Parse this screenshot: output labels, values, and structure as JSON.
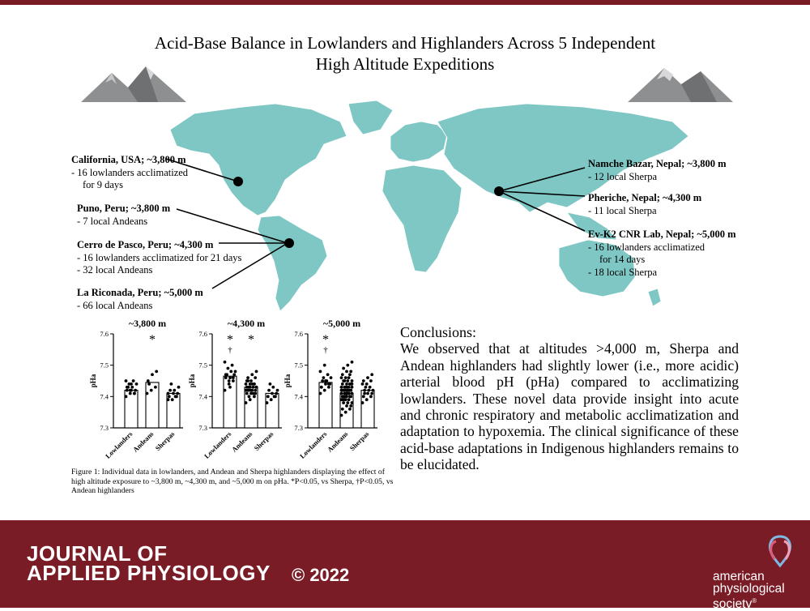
{
  "title": {
    "line1": "Acid-Base Balance in Lowlanders and Highlanders Across 5 Independent",
    "line2": "High Altitude Expeditions"
  },
  "map_labels": {
    "california": {
      "head": "California, USA; ~3,800 m",
      "lines": [
        "- 16 lowlanders acclimatized",
        "for 9 days"
      ]
    },
    "puno": {
      "head": "Puno, Peru; ~3,800 m",
      "lines": [
        "- 7 local Andeans"
      ]
    },
    "cerro": {
      "head": "Cerro de Pasco, Peru; ~4,300 m",
      "lines": [
        "- 16 lowlanders acclimatized for 21 days",
        "- 32 local Andeans"
      ]
    },
    "riconada": {
      "head": "La Riconada, Peru; ~5,000 m",
      "lines": [
        "- 66 local Andeans"
      ]
    },
    "namche": {
      "head": "Namche Bazar, Nepal; ~3,800 m",
      "lines": [
        "- 12 local Sherpa"
      ]
    },
    "pheriche": {
      "head": "Pheriche, Nepal; ~4,300 m",
      "lines": [
        "- 11 local Sherpa"
      ]
    },
    "evk2": {
      "head": "Ev-K2 CNR Lab, Nepal; ~5,000 m",
      "lines": [
        "- 16 lowlanders acclimatized",
        "for 14 days",
        "- 18 local Sherpa"
      ]
    }
  },
  "chart_data": [
    {
      "type": "bar",
      "title": "~3,800 m",
      "ylabel": "pHa",
      "categories": [
        "Lowlanders",
        "Andeans",
        "Sherpas"
      ],
      "values": [
        7.42,
        7.445,
        7.41
      ],
      "annotations": [
        {
          "category": "Andeans",
          "text": "*"
        }
      ],
      "ylim": [
        7.3,
        7.6
      ],
      "yticks": [
        "7.3",
        "7.4",
        "7.5",
        "7.6"
      ],
      "points": [
        [
          7.4,
          7.41,
          7.41,
          7.42,
          7.42,
          7.42,
          7.43,
          7.43,
          7.44,
          7.44,
          7.45,
          7.45,
          7.42,
          7.41,
          7.43,
          7.44
        ],
        [
          7.41,
          7.42,
          7.43,
          7.45,
          7.47,
          7.48,
          7.44
        ],
        [
          7.39,
          7.39,
          7.4,
          7.4,
          7.41,
          7.41,
          7.42,
          7.42,
          7.43,
          7.44,
          7.4,
          7.41
        ]
      ]
    },
    {
      "type": "bar",
      "title": "~4,300 m",
      "ylabel": "pHa",
      "categories": [
        "Lowlanders",
        "Andeans",
        "Sherpas"
      ],
      "values": [
        7.465,
        7.43,
        7.41
      ],
      "annotations": [
        {
          "category": "Lowlanders",
          "text": "*"
        },
        {
          "category": "Lowlanders",
          "text": "†"
        },
        {
          "category": "Andeans",
          "text": "*"
        }
      ],
      "ylim": [
        7.3,
        7.6
      ],
      "yticks": [
        "7.3",
        "7.4",
        "7.5",
        "7.6"
      ],
      "points": [
        [
          7.42,
          7.44,
          7.45,
          7.46,
          7.46,
          7.47,
          7.47,
          7.48,
          7.48,
          7.49,
          7.5,
          7.51,
          7.45,
          7.46,
          7.47,
          7.43
        ],
        [
          7.38,
          7.39,
          7.4,
          7.41,
          7.41,
          7.42,
          7.42,
          7.42,
          7.43,
          7.43,
          7.43,
          7.44,
          7.44,
          7.44,
          7.45,
          7.45,
          7.46,
          7.46,
          7.47,
          7.48,
          7.4,
          7.41,
          7.42,
          7.43,
          7.44,
          7.43,
          7.42,
          7.41,
          7.45,
          7.44,
          7.43,
          7.42
        ],
        [
          7.38,
          7.39,
          7.4,
          7.4,
          7.41,
          7.41,
          7.42,
          7.43,
          7.42,
          7.44,
          7.4
        ]
      ]
    },
    {
      "type": "bar",
      "title": "~5,000 m",
      "ylabel": "pHa",
      "categories": [
        "Lowlanders",
        "Andeans",
        "Sherpas"
      ],
      "values": [
        7.445,
        7.41,
        7.42
      ],
      "annotations": [
        {
          "category": "Lowlanders",
          "text": "*"
        },
        {
          "category": "Lowlanders",
          "text": "†"
        }
      ],
      "ylim": [
        7.3,
        7.6
      ],
      "yticks": [
        "7.3",
        "7.4",
        "7.5",
        "7.6"
      ],
      "points": [
        [
          7.41,
          7.42,
          7.43,
          7.43,
          7.44,
          7.44,
          7.45,
          7.45,
          7.46,
          7.46,
          7.47,
          7.48,
          7.5,
          7.44,
          7.43,
          7.45
        ],
        [
          7.34,
          7.35,
          7.36,
          7.36,
          7.37,
          7.37,
          7.38,
          7.38,
          7.38,
          7.39,
          7.39,
          7.39,
          7.39,
          7.4,
          7.4,
          7.4,
          7.4,
          7.4,
          7.41,
          7.41,
          7.41,
          7.41,
          7.41,
          7.41,
          7.42,
          7.42,
          7.42,
          7.42,
          7.42,
          7.42,
          7.43,
          7.43,
          7.43,
          7.43,
          7.43,
          7.44,
          7.44,
          7.44,
          7.44,
          7.45,
          7.45,
          7.45,
          7.45,
          7.46,
          7.46,
          7.46,
          7.47,
          7.47,
          7.48,
          7.48,
          7.49,
          7.5,
          7.51,
          7.4,
          7.41,
          7.42,
          7.43,
          7.44,
          7.39,
          7.41,
          7.42,
          7.4,
          7.43,
          7.44,
          7.42,
          7.41
        ],
        [
          7.38,
          7.39,
          7.4,
          7.4,
          7.41,
          7.41,
          7.42,
          7.42,
          7.42,
          7.43,
          7.43,
          7.44,
          7.44,
          7.45,
          7.45,
          7.46,
          7.47,
          7.41
        ]
      ]
    }
  ],
  "caption": {
    "fig_label": "Figure 1",
    "text": ": Individual data in lowlanders, and Andean and Sherpa highlanders displaying the effect of high altitude exposure to ~3,800 m, ~4,300 m, and ~5,000 m on pHa. *P<0.05, vs Sherpa, †P<0.05, vs Andean highlanders"
  },
  "conclusions": {
    "title": "Conclusions:",
    "text": "We observed that at altitudes >4,000 m, Sherpa and Andean highlanders had slightly lower (i.e., more acidic) arterial blood pH (pHa) compared to acclimatizing lowlanders. These novel data provide insight into acute and chronic respiratory and metabolic acclimatization and adaptation to hypoxemia. The clinical significance of these acid-base adaptations in Indigenous highlanders remains to be elucidated."
  },
  "footer": {
    "journal_line1": "JOURNAL OF",
    "journal_line2": "APPLIED PHYSIOLOGY",
    "copyright": "© 2022",
    "society_line1": "american",
    "society_line2": "physiological",
    "society_line3": "society",
    "society_mark": "®"
  },
  "colors": {
    "map": "#7ec7c4",
    "footer": "#7a1c26",
    "mountain": "#8e8f91"
  }
}
